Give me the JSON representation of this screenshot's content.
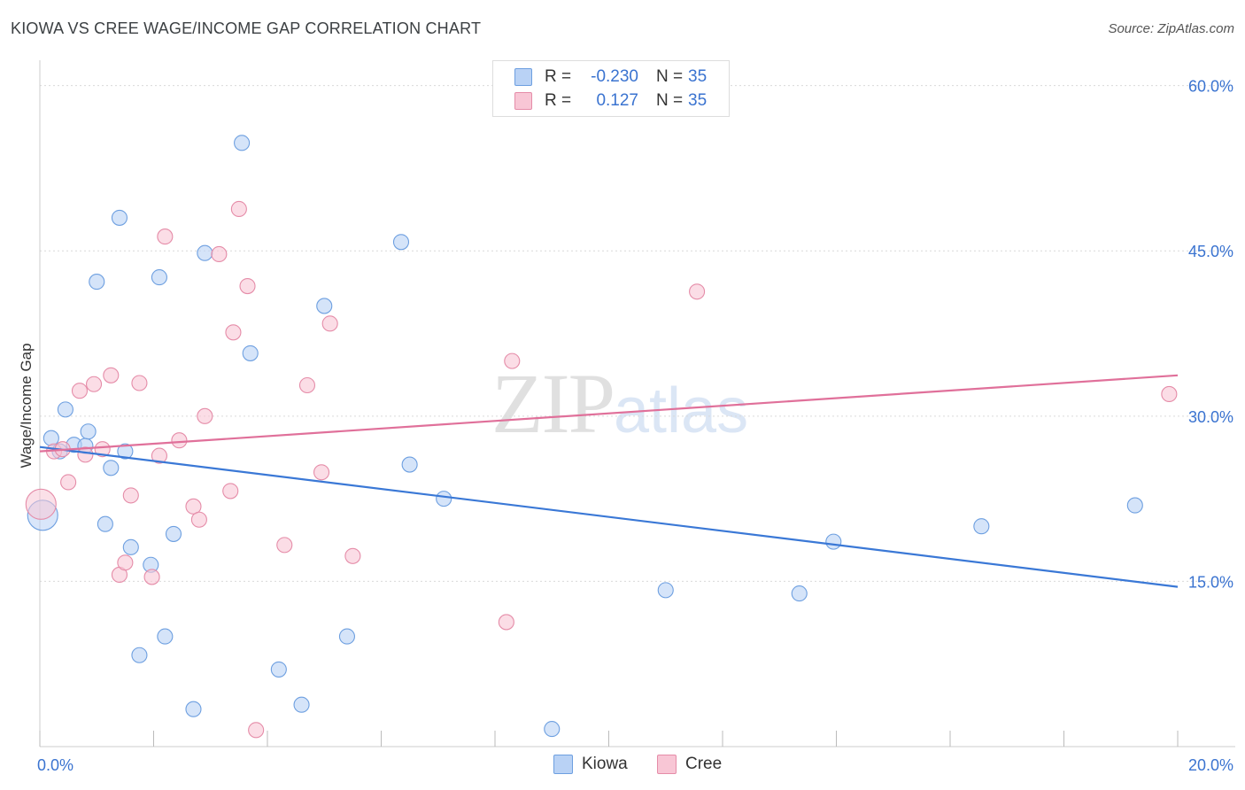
{
  "title": "KIOWA VS CREE WAGE/INCOME GAP CORRELATION CHART",
  "source": "Source: ZipAtlas.com",
  "watermark": {
    "zip": "ZIP",
    "atlas": "atlas"
  },
  "legend": {
    "rows": [
      {
        "r_label": "R =",
        "r_value": "-0.230",
        "n_label": "N =",
        "n_value": "35",
        "fill": "#b9d2f5",
        "stroke": "#6d9fe0"
      },
      {
        "r_label": "R =",
        "r_value": "0.127",
        "n_label": "N =",
        "n_value": "35",
        "fill": "#f8c6d5",
        "stroke": "#e58ca8"
      }
    ]
  },
  "bottom_legend": [
    {
      "label": "Kiowa",
      "fill": "#b9d2f5",
      "stroke": "#6d9fe0"
    },
    {
      "label": "Cree",
      "fill": "#f8c6d5",
      "stroke": "#e58ca8"
    }
  ],
  "chart_data": {
    "type": "scatter",
    "title": "KIOWA VS CREE WAGE/INCOME GAP CORRELATION CHART",
    "xlabel": "",
    "ylabel": "Wage/Income Gap",
    "xlim": [
      0,
      20
    ],
    "ylim": [
      0,
      61.5
    ],
    "x_tick_labels": [
      "0.0%",
      "20.0%"
    ],
    "y_ticks": [
      15,
      30,
      45,
      60
    ],
    "y_tick_labels": [
      "15.0%",
      "30.0%",
      "45.0%",
      "60.0%"
    ],
    "grid": true,
    "series": [
      {
        "name": "Kiowa",
        "color": "#3a78d6",
        "fill": "#b9d2f5",
        "stroke": "#6d9fe0",
        "trend": {
          "x": [
            0,
            20
          ],
          "y": [
            27.2,
            14.5
          ]
        },
        "points": [
          {
            "x": 0.05,
            "y": 21.0,
            "big": true
          },
          {
            "x": 0.2,
            "y": 28.0
          },
          {
            "x": 0.35,
            "y": 26.8
          },
          {
            "x": 0.45,
            "y": 30.6
          },
          {
            "x": 0.6,
            "y": 27.4
          },
          {
            "x": 0.8,
            "y": 27.3
          },
          {
            "x": 0.85,
            "y": 28.6
          },
          {
            "x": 1.0,
            "y": 42.2
          },
          {
            "x": 1.15,
            "y": 20.2
          },
          {
            "x": 1.25,
            "y": 25.3
          },
          {
            "x": 1.4,
            "y": 48.0
          },
          {
            "x": 1.5,
            "y": 26.8
          },
          {
            "x": 1.6,
            "y": 18.1
          },
          {
            "x": 1.75,
            "y": 8.3
          },
          {
            "x": 1.95,
            "y": 16.5
          },
          {
            "x": 2.1,
            "y": 42.6
          },
          {
            "x": 2.2,
            "y": 10.0
          },
          {
            "x": 2.35,
            "y": 19.3
          },
          {
            "x": 2.7,
            "y": 3.4
          },
          {
            "x": 2.9,
            "y": 44.8
          },
          {
            "x": 3.55,
            "y": 54.8
          },
          {
            "x": 3.7,
            "y": 35.7
          },
          {
            "x": 4.2,
            "y": 7.0
          },
          {
            "x": 4.6,
            "y": 3.8
          },
          {
            "x": 5.0,
            "y": 40.0
          },
          {
            "x": 5.4,
            "y": 10.0
          },
          {
            "x": 6.35,
            "y": 45.8
          },
          {
            "x": 6.5,
            "y": 25.6
          },
          {
            "x": 7.1,
            "y": 22.5
          },
          {
            "x": 9.0,
            "y": 1.6
          },
          {
            "x": 11.0,
            "y": 14.2
          },
          {
            "x": 13.35,
            "y": 13.9
          },
          {
            "x": 13.95,
            "y": 18.6
          },
          {
            "x": 16.55,
            "y": 20.0
          },
          {
            "x": 19.25,
            "y": 21.9
          }
        ]
      },
      {
        "name": "Cree",
        "color": "#e0709a",
        "fill": "#f8c6d5",
        "stroke": "#e58ca8",
        "trend": {
          "x": [
            0,
            20
          ],
          "y": [
            26.8,
            33.7
          ]
        },
        "points": [
          {
            "x": 0.02,
            "y": 22.0,
            "big": true
          },
          {
            "x": 0.25,
            "y": 26.8
          },
          {
            "x": 0.4,
            "y": 27.0
          },
          {
            "x": 0.5,
            "y": 24.0
          },
          {
            "x": 0.7,
            "y": 32.3
          },
          {
            "x": 0.95,
            "y": 32.9
          },
          {
            "x": 0.8,
            "y": 26.5
          },
          {
            "x": 1.1,
            "y": 27.0
          },
          {
            "x": 1.25,
            "y": 33.7
          },
          {
            "x": 1.4,
            "y": 15.6
          },
          {
            "x": 1.5,
            "y": 16.7
          },
          {
            "x": 1.6,
            "y": 22.8
          },
          {
            "x": 1.75,
            "y": 33.0
          },
          {
            "x": 1.97,
            "y": 15.4
          },
          {
            "x": 2.1,
            "y": 26.4
          },
          {
            "x": 2.2,
            "y": 46.3
          },
          {
            "x": 2.45,
            "y": 27.8
          },
          {
            "x": 2.7,
            "y": 21.8
          },
          {
            "x": 2.8,
            "y": 20.6
          },
          {
            "x": 2.9,
            "y": 30.0
          },
          {
            "x": 3.15,
            "y": 44.7
          },
          {
            "x": 3.35,
            "y": 23.2
          },
          {
            "x": 3.4,
            "y": 37.6
          },
          {
            "x": 3.5,
            "y": 48.8
          },
          {
            "x": 3.65,
            "y": 41.8
          },
          {
            "x": 3.8,
            "y": 1.5
          },
          {
            "x": 4.3,
            "y": 18.3
          },
          {
            "x": 4.7,
            "y": 32.8
          },
          {
            "x": 4.95,
            "y": 24.9
          },
          {
            "x": 5.1,
            "y": 38.4
          },
          {
            "x": 5.5,
            "y": 17.3
          },
          {
            "x": 8.2,
            "y": 11.3
          },
          {
            "x": 8.3,
            "y": 35.0
          },
          {
            "x": 11.55,
            "y": 41.3
          },
          {
            "x": 19.85,
            "y": 32.0
          }
        ]
      }
    ]
  }
}
